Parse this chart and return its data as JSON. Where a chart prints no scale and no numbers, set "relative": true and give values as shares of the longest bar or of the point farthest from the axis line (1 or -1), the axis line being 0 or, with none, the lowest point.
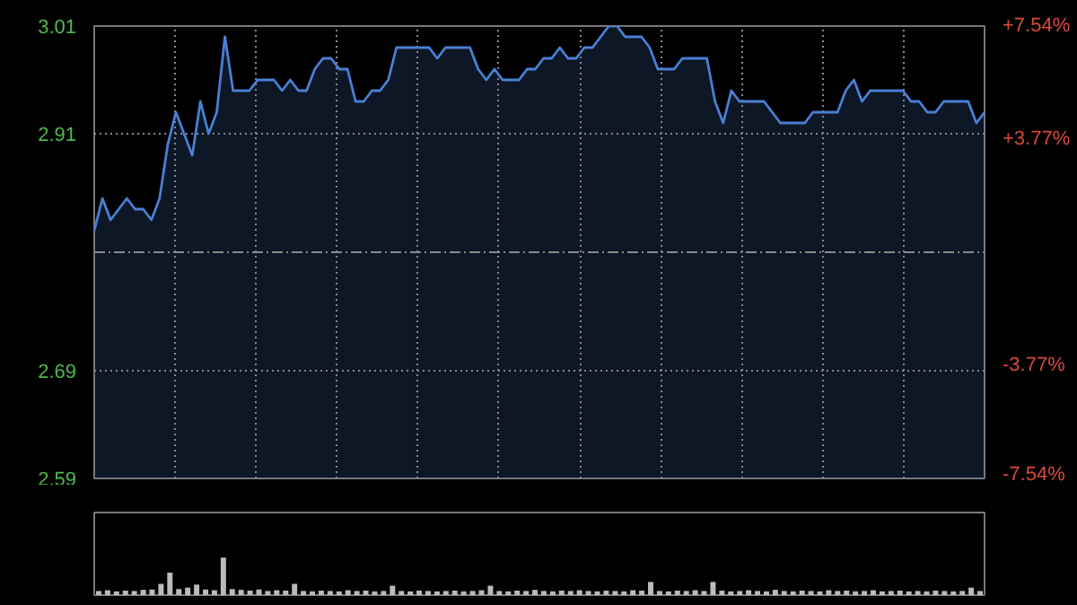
{
  "chart_data": [
    {
      "type": "area",
      "color": "#4a7fd4",
      "categories": [
        null,
        null,
        null,
        null,
        null,
        null,
        null,
        null,
        null,
        null,
        null,
        null,
        null,
        null,
        null,
        null,
        null,
        null,
        null,
        null,
        null,
        null,
        null,
        null,
        null,
        null,
        null,
        null,
        null,
        null,
        null,
        null,
        null,
        null,
        null,
        null,
        null,
        null,
        null,
        null,
        null,
        null,
        null,
        null,
        null,
        null,
        null,
        null,
        null,
        null,
        null,
        null,
        null,
        null,
        null,
        null,
        null,
        null,
        null,
        null,
        null,
        null,
        null,
        null,
        null,
        null,
        null,
        null,
        null,
        null,
        null,
        null,
        null,
        null,
        null,
        null,
        null,
        null,
        null,
        null,
        null,
        null,
        null,
        null,
        null,
        null,
        null,
        null,
        null,
        null,
        null,
        null,
        null,
        null,
        null,
        null,
        null,
        null,
        null,
        null,
        null,
        null,
        null,
        null,
        null,
        null,
        null,
        null,
        null,
        null
      ],
      "values": [
        2.82,
        2.85,
        2.83,
        2.84,
        2.85,
        2.84,
        2.84,
        2.83,
        2.85,
        2.9,
        2.93,
        2.91,
        2.89,
        2.94,
        2.91,
        2.93,
        3.0,
        2.95,
        2.95,
        2.95,
        2.96,
        2.96,
        2.96,
        2.95,
        2.96,
        2.95,
        2.95,
        2.97,
        2.98,
        2.98,
        2.97,
        2.97,
        2.94,
        2.94,
        2.95,
        2.95,
        2.96,
        2.99,
        2.99,
        2.99,
        2.99,
        2.99,
        2.98,
        2.99,
        2.99,
        2.99,
        2.99,
        2.97,
        2.96,
        2.97,
        2.96,
        2.96,
        2.96,
        2.97,
        2.97,
        2.98,
        2.98,
        2.99,
        2.98,
        2.98,
        2.99,
        2.99,
        3.0,
        3.01,
        3.01,
        3.0,
        3.0,
        3.0,
        2.99,
        2.97,
        2.97,
        2.97,
        2.98,
        2.98,
        2.98,
        2.98,
        2.94,
        2.92,
        2.95,
        2.94,
        2.94,
        2.94,
        2.94,
        2.93,
        2.92,
        2.92,
        2.92,
        2.92,
        2.93,
        2.93,
        2.93,
        2.93,
        2.95,
        2.96,
        2.94,
        2.95,
        2.95,
        2.95,
        2.95,
        2.95,
        2.94,
        2.94,
        2.93,
        2.93,
        2.94,
        2.94,
        2.94,
        2.94,
        2.92,
        2.93
      ],
      "ylim": [
        2.59,
        3.01
      ],
      "yticks": [
        2.59,
        2.69,
        2.91,
        3.01
      ],
      "y2lim": [
        -7.54,
        7.54
      ],
      "y2ticks": [
        {
          "value": -7.54,
          "label": "-7.54%"
        },
        {
          "value": -3.77,
          "label": "-3.77%"
        },
        {
          "value": 3.77,
          "label": "+3.77%"
        },
        {
          "value": 7.54,
          "label": "+7.54%"
        }
      ],
      "grid": true,
      "ref_lines": [
        {
          "axis": "y",
          "value": 2.8,
          "label": null,
          "line_style": "dashed"
        }
      ]
    },
    {
      "type": "bar",
      "relative": true,
      "color": "#bbbbbb",
      "categories": [
        null,
        null,
        null,
        null,
        null,
        null,
        null,
        null,
        null,
        null,
        null,
        null,
        null,
        null,
        null,
        null,
        null,
        null,
        null,
        null,
        null,
        null,
        null,
        null,
        null,
        null,
        null,
        null,
        null,
        null,
        null,
        null,
        null,
        null,
        null,
        null,
        null,
        null,
        null,
        null,
        null,
        null,
        null,
        null,
        null,
        null,
        null,
        null,
        null,
        null,
        null,
        null,
        null,
        null,
        null,
        null,
        null,
        null,
        null,
        null,
        null,
        null,
        null,
        null,
        null,
        null,
        null,
        null,
        null,
        null,
        null,
        null,
        null,
        null,
        null,
        null,
        null,
        null,
        null,
        null,
        null,
        null,
        null,
        null,
        null,
        null,
        null,
        null,
        null,
        null,
        null,
        null,
        null,
        null,
        null,
        null,
        null,
        null,
        null,
        null
      ],
      "values": [
        0.11,
        0.13,
        0.1,
        0.12,
        0.11,
        0.14,
        0.15,
        0.3,
        0.6,
        0.16,
        0.2,
        0.28,
        0.15,
        0.13,
        1,
        0.16,
        0.14,
        0.12,
        0.15,
        0.11,
        0.13,
        0.12,
        0.3,
        0.11,
        0.1,
        0.12,
        0.11,
        0.1,
        0.13,
        0.11,
        0.12,
        0.1,
        0.11,
        0.25,
        0.11,
        0.1,
        0.12,
        0.11,
        0.1,
        0.11,
        0.12,
        0.1,
        0.11,
        0.13,
        0.25,
        0.11,
        0.1,
        0.12,
        0.11,
        0.14,
        0.11,
        0.1,
        0.12,
        0.11,
        0.13,
        0.11,
        0.1,
        0.12,
        0.11,
        0.1,
        0.13,
        0.12,
        0.35,
        0.11,
        0.1,
        0.12,
        0.11,
        0.13,
        0.11,
        0.35,
        0.12,
        0.1,
        0.11,
        0.13,
        0.11,
        0.1,
        0.14,
        0.11,
        0.1,
        0.12,
        0.11,
        0.1,
        0.13,
        0.11,
        0.12,
        0.1,
        0.11,
        0.13,
        0.1,
        0.11,
        0.12,
        0.1,
        0.11,
        0.1,
        0.12,
        0.11,
        0.1,
        0.11,
        0.2,
        0.11
      ]
    }
  ]
}
